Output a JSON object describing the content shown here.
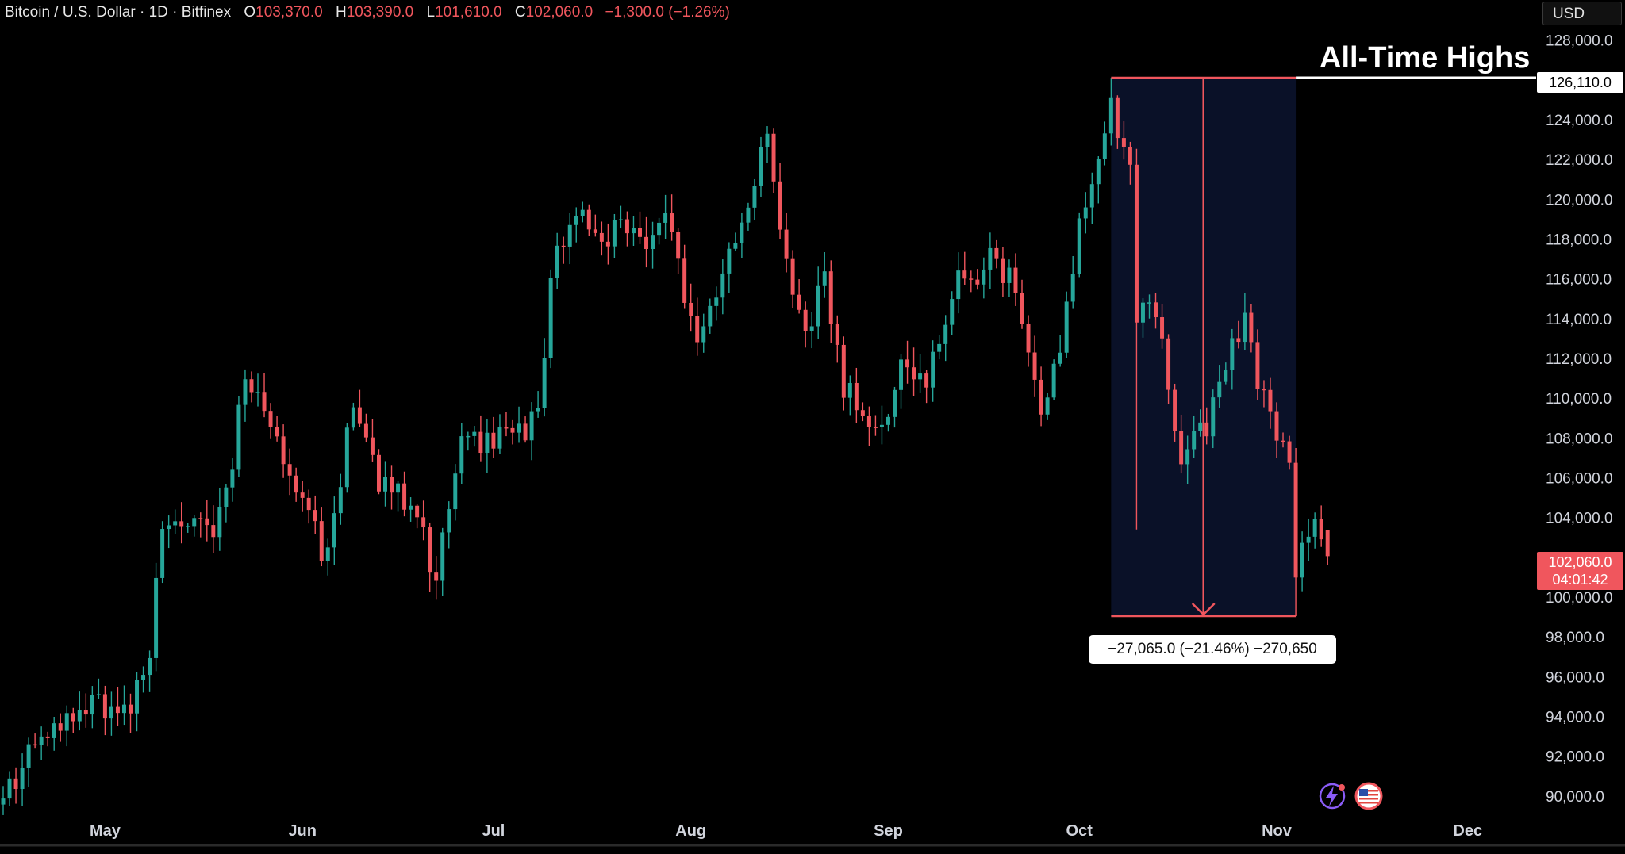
{
  "legend": {
    "symbol": "Bitcoin / U.S. Dollar · 1D · Bitfinex",
    "open_label": "O",
    "open": "103,370.0",
    "high_label": "H",
    "high": "103,390.0",
    "low_label": "L",
    "low": "101,610.0",
    "close_label": "C",
    "close": "102,060.0",
    "change": "−1,300.0 (−1.26%)"
  },
  "currency": "USD",
  "annotation": {
    "title": "All-Time Highs",
    "ath_price": "126,110.0",
    "measure": "−27,065.0 (−21.46%) −270,650"
  },
  "last_price": {
    "price": "102,060.0",
    "countdown": "04:01:42"
  },
  "icons": [
    "zap-sparkle-icon",
    "us-flag-badge-icon"
  ],
  "colors": {
    "up": "#26a69a",
    "down": "#f0565d",
    "measure_box": "#0a1128",
    "measure_line": "#f0565d",
    "background": "#000000"
  },
  "chart_data": {
    "type": "candlestick",
    "ylim": [
      89000,
      129500
    ],
    "y_ticks": [
      90000,
      92000,
      94000,
      96000,
      98000,
      100000,
      102000,
      104000,
      106000,
      108000,
      110000,
      112000,
      114000,
      116000,
      118000,
      120000,
      122000,
      124000,
      126000,
      128000
    ],
    "y_tick_labels": [
      "90,000.0",
      "92,000.0",
      "94,000.0",
      "96,000.0",
      "98,000.0",
      "100,000.0",
      "102,000.0",
      "104,000.0",
      "106,000.0",
      "108,000.0",
      "110,000.0",
      "112,000.0",
      "114,000.0",
      "116,000.0",
      "118,000.0",
      "120,000.0",
      "122,000.0",
      "124,000.0",
      "126,000.0",
      "128,000.0"
    ],
    "x_ticks": [
      {
        "date": "2025-05-01",
        "label": "May"
      },
      {
        "date": "2025-06-01",
        "label": "Jun"
      },
      {
        "date": "2025-07-01",
        "label": "Jul"
      },
      {
        "date": "2025-08-01",
        "label": "Aug"
      },
      {
        "date": "2025-09-01",
        "label": "Sep"
      },
      {
        "date": "2025-10-01",
        "label": "Oct"
      },
      {
        "date": "2025-11-01",
        "label": "Nov"
      },
      {
        "date": "2025-12-01",
        "label": "Dec"
      }
    ],
    "x_range": [
      "2025-04-15",
      "2025-12-11"
    ],
    "measure": {
      "start": "2025-10-06",
      "end": "2025-11-04",
      "from": 126110,
      "to": 99045
    },
    "ath": 126110,
    "last": 102060,
    "anchors": [
      {
        "date": "2025-04-15",
        "price": 89800
      },
      {
        "date": "2025-04-22",
        "price": 93500
      },
      {
        "date": "2025-04-30",
        "price": 94500
      },
      {
        "date": "2025-05-05",
        "price": 94200
      },
      {
        "date": "2025-05-08",
        "price": 97000
      },
      {
        "date": "2025-05-10",
        "price": 103500
      },
      {
        "date": "2025-05-14",
        "price": 103800
      },
      {
        "date": "2025-05-18",
        "price": 103200
      },
      {
        "date": "2025-05-21",
        "price": 106500
      },
      {
        "date": "2025-05-23",
        "price": 111500
      },
      {
        "date": "2025-05-26",
        "price": 109500
      },
      {
        "date": "2025-05-29",
        "price": 107000
      },
      {
        "date": "2025-06-01",
        "price": 104800
      },
      {
        "date": "2025-06-05",
        "price": 101800
      },
      {
        "date": "2025-06-09",
        "price": 110000
      },
      {
        "date": "2025-06-13",
        "price": 105500
      },
      {
        "date": "2025-06-18",
        "price": 105000
      },
      {
        "date": "2025-06-22",
        "price": 101000
      },
      {
        "date": "2025-06-26",
        "price": 107500
      },
      {
        "date": "2025-07-02",
        "price": 108000
      },
      {
        "date": "2025-07-08",
        "price": 108800
      },
      {
        "date": "2025-07-10",
        "price": 116000
      },
      {
        "date": "2025-07-14",
        "price": 119800
      },
      {
        "date": "2025-07-17",
        "price": 117800
      },
      {
        "date": "2025-07-21",
        "price": 118500
      },
      {
        "date": "2025-07-25",
        "price": 117500
      },
      {
        "date": "2025-07-28",
        "price": 119000
      },
      {
        "date": "2025-08-02",
        "price": 112500
      },
      {
        "date": "2025-08-05",
        "price": 115000
      },
      {
        "date": "2025-08-08",
        "price": 117800
      },
      {
        "date": "2025-08-10",
        "price": 119500
      },
      {
        "date": "2025-08-13",
        "price": 123500
      },
      {
        "date": "2025-08-15",
        "price": 117800
      },
      {
        "date": "2025-08-19",
        "price": 113000
      },
      {
        "date": "2025-08-22",
        "price": 116500
      },
      {
        "date": "2025-08-25",
        "price": 110500
      },
      {
        "date": "2025-08-31",
        "price": 108200
      },
      {
        "date": "2025-09-03",
        "price": 111200
      },
      {
        "date": "2025-09-07",
        "price": 111000
      },
      {
        "date": "2025-09-12",
        "price": 115900
      },
      {
        "date": "2025-09-17",
        "price": 116800
      },
      {
        "date": "2025-09-21",
        "price": 115500
      },
      {
        "date": "2025-09-25",
        "price": 109200
      },
      {
        "date": "2025-09-28",
        "price": 112200
      },
      {
        "date": "2025-10-01",
        "price": 118500
      },
      {
        "date": "2025-10-04",
        "price": 122500
      },
      {
        "date": "2025-10-06",
        "price": 124800
      },
      {
        "date": "2025-10-09",
        "price": 121500
      },
      {
        "date": "2025-10-10",
        "price": 113200
      },
      {
        "date": "2025-10-12",
        "price": 115200
      },
      {
        "date": "2025-10-14",
        "price": 112800
      },
      {
        "date": "2025-10-17",
        "price": 106500
      },
      {
        "date": "2025-10-19",
        "price": 108200
      },
      {
        "date": "2025-10-21",
        "price": 108400
      },
      {
        "date": "2025-10-23",
        "price": 110200
      },
      {
        "date": "2025-10-27",
        "price": 114400
      },
      {
        "date": "2025-10-29",
        "price": 110000
      },
      {
        "date": "2025-10-31",
        "price": 109500
      },
      {
        "date": "2025-11-03",
        "price": 106500
      },
      {
        "date": "2025-11-04",
        "price": 101400
      },
      {
        "date": "2025-11-07",
        "price": 103300
      },
      {
        "date": "2025-11-09",
        "price": 102060
      }
    ]
  }
}
